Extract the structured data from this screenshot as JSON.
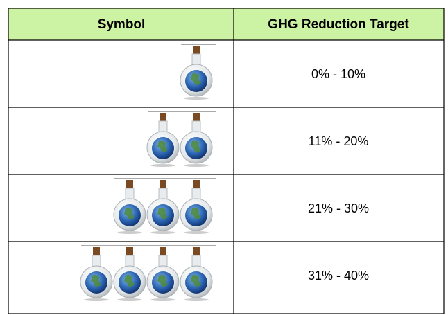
{
  "table": {
    "header": [
      "Symbol",
      "GHG Reduction Target"
    ],
    "rows": [
      "0% - 10%",
      "11% - 20%",
      "21% - 30%",
      "31% - 40%"
    ]
  }
}
